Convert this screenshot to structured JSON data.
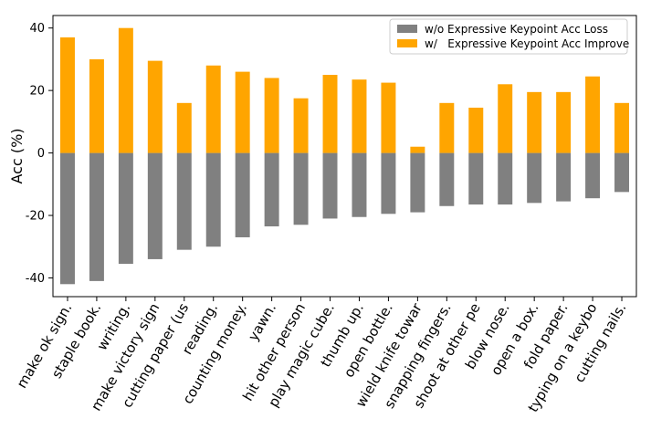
{
  "chart_data": {
    "type": "bar",
    "ylabel": "Acc (%)",
    "ylim": [
      -46,
      44
    ],
    "yticks": [
      -40,
      -20,
      0,
      20,
      40
    ],
    "grid": false,
    "legend_position": "top-right",
    "categories": [
      "make ok sign.",
      "staple book.",
      "writing.",
      "make victory sign",
      "cutting paper (us",
      "reading.",
      "counting money.",
      "yawn.",
      "hit other person",
      "play magic cube.",
      "thumb up.",
      "open bottle.",
      "wield knife towar",
      "snapping fingers.",
      "shoot at other pe",
      "blow nose.",
      "open a box.",
      "fold paper.",
      "typing on a keybo",
      "cutting nails."
    ],
    "series": [
      {
        "name": "w/o Expressive Keypoint Acc Loss",
        "color": "#808080",
        "values": [
          -42,
          -41,
          -35.5,
          -34,
          -31,
          -30,
          -27,
          -23.5,
          -23,
          -21,
          -20.5,
          -19.5,
          -19,
          -17,
          -16.5,
          -16.5,
          -16,
          -15.5,
          -14.5,
          -12.5
        ]
      },
      {
        "name": "w/   Expressive Keypoint Acc Improve",
        "color": "#FFA500",
        "values": [
          37,
          30,
          40,
          29.5,
          16,
          28,
          26,
          24,
          17.5,
          25,
          23.5,
          22.5,
          2,
          16,
          14.5,
          22,
          19.5,
          19.5,
          24.5,
          16
        ]
      }
    ]
  }
}
